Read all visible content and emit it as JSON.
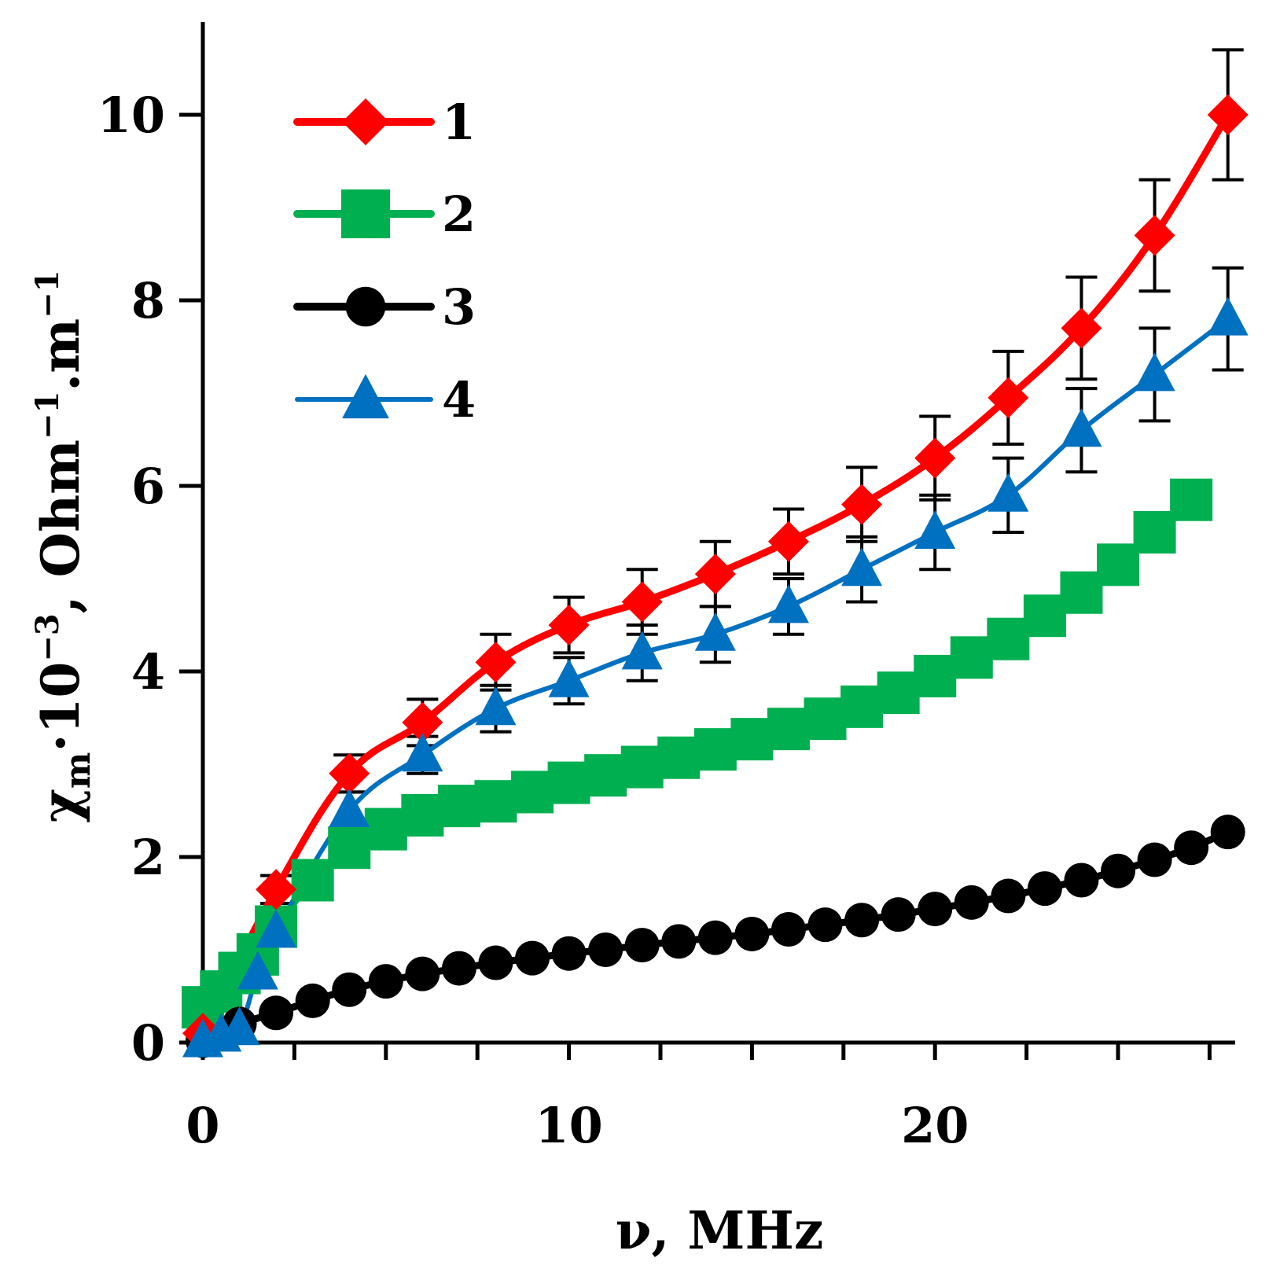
{
  "chart_data": {
    "type": "line",
    "title": "",
    "xlabel": "ν, MHz",
    "ylabel": {
      "symbol": "χ",
      "subscript": "m",
      "mid": "·10",
      "exp1": "−3",
      "unit": ", Ohm",
      "exp2": "−1",
      "unit2": ".m",
      "exp3": "−1"
    },
    "xlim": [
      0,
      28.2
    ],
    "ylim": [
      0,
      10.8
    ],
    "x_ticks": [
      0,
      10,
      20
    ],
    "x_minor_ticks": [
      2.5,
      5,
      7.5,
      12.5,
      15,
      17.5,
      22.5,
      25,
      27.5
    ],
    "y_ticks": [
      0,
      2,
      4,
      6,
      8,
      10
    ],
    "legend": {
      "position": "top-left"
    },
    "series": [
      {
        "name": "1",
        "color": "#ff0000",
        "marker": "diamond",
        "x": [
          0,
          2,
          4,
          6,
          8,
          10,
          12,
          14,
          16,
          18,
          20,
          22,
          24,
          26,
          28
        ],
        "y": [
          0.1,
          1.65,
          2.9,
          3.45,
          4.1,
          4.5,
          4.75,
          5.05,
          5.4,
          5.8,
          6.3,
          6.95,
          7.7,
          8.7,
          10.0
        ],
        "err": [
          0,
          0.15,
          0.2,
          0.25,
          0.3,
          0.3,
          0.35,
          0.35,
          0.35,
          0.4,
          0.45,
          0.5,
          0.55,
          0.6,
          0.7
        ]
      },
      {
        "name": "2",
        "color": "#00b050",
        "marker": "square",
        "x": [
          0,
          0.5,
          1,
          1.5,
          2,
          3,
          4,
          5,
          6,
          7,
          8,
          9,
          10,
          11,
          12,
          13,
          14,
          15,
          16,
          17,
          18,
          19,
          20,
          21,
          22,
          23,
          24,
          25,
          26,
          27
        ],
        "y": [
          0.38,
          0.55,
          0.75,
          0.95,
          1.25,
          1.75,
          2.1,
          2.3,
          2.45,
          2.55,
          2.6,
          2.7,
          2.8,
          2.88,
          2.97,
          3.07,
          3.16,
          3.27,
          3.38,
          3.49,
          3.62,
          3.77,
          3.95,
          4.15,
          4.35,
          4.6,
          4.85,
          5.15,
          5.5,
          5.85
        ]
      },
      {
        "name": "3",
        "color": "#000000",
        "marker": "circle",
        "x": [
          0,
          1,
          2,
          3,
          4,
          5,
          6,
          7,
          8,
          9,
          10,
          11,
          12,
          13,
          14,
          15,
          16,
          17,
          18,
          19,
          20,
          21,
          22,
          23,
          24,
          25,
          26,
          27,
          28
        ],
        "y": [
          0.02,
          0.2,
          0.32,
          0.45,
          0.57,
          0.66,
          0.74,
          0.8,
          0.86,
          0.91,
          0.96,
          1.0,
          1.05,
          1.09,
          1.13,
          1.17,
          1.22,
          1.27,
          1.32,
          1.38,
          1.44,
          1.51,
          1.58,
          1.66,
          1.75,
          1.85,
          1.97,
          2.1,
          2.27
        ]
      },
      {
        "name": "4",
        "color": "#0070c0",
        "marker": "triangle",
        "x": [
          0,
          0.5,
          1,
          1.5,
          2,
          4,
          6,
          8,
          10,
          12,
          14,
          16,
          18,
          20,
          22,
          24,
          26,
          28
        ],
        "y": [
          0.02,
          0.08,
          0.15,
          0.75,
          1.2,
          2.5,
          3.1,
          3.6,
          3.9,
          4.2,
          4.4,
          4.7,
          5.1,
          5.5,
          5.9,
          6.6,
          7.2,
          7.8
        ],
        "err": [
          0,
          0,
          0,
          0,
          0,
          0.2,
          0.2,
          0.25,
          0.25,
          0.3,
          0.3,
          0.3,
          0.35,
          0.4,
          0.4,
          0.45,
          0.5,
          0.55
        ]
      }
    ]
  }
}
